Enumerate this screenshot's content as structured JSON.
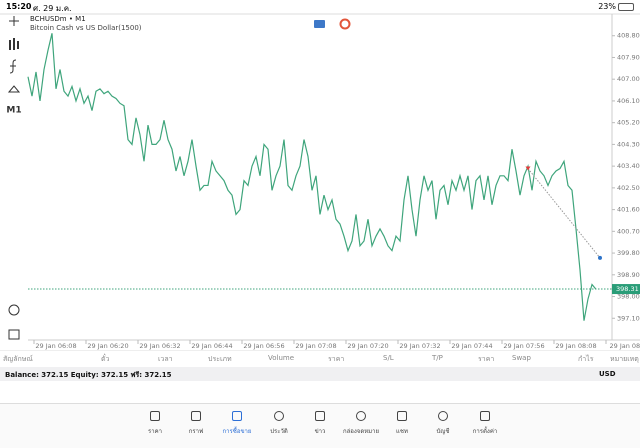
{
  "status_bar": {
    "time": "15:20",
    "date": "ศ. 29 ม.ค.",
    "battery": "23%"
  },
  "chart_data": {
    "type": "line",
    "title": "BCHUSDm • M1",
    "subtitle": "Bitcoin Cash vs US Dollar(1500)",
    "timeframe": "M1",
    "color": "#3fa57c",
    "values": [
      407.1,
      406.3,
      407.3,
      406.1,
      407.4,
      408.2,
      408.9,
      406.6,
      407.4,
      406.5,
      406.3,
      406.7,
      406.1,
      406.6,
      406.0,
      406.3,
      405.7,
      406.5,
      406.6,
      406.4,
      406.5,
      406.3,
      406.2,
      406.0,
      405.9,
      404.5,
      404.3,
      405.4,
      404.7,
      403.6,
      405.1,
      404.3,
      404.3,
      404.5,
      405.3,
      404.5,
      404.1,
      403.2,
      403.8,
      403.0,
      403.6,
      404.5,
      403.4,
      402.4,
      402.6,
      402.6,
      403.6,
      403.2,
      403.0,
      402.8,
      402.4,
      402.2,
      401.4,
      401.6,
      402.8,
      402.6,
      403.4,
      403.8,
      403.0,
      404.3,
      404.1,
      402.4,
      403.0,
      403.4,
      404.5,
      402.6,
      402.4,
      403.0,
      403.4,
      404.5,
      403.8,
      402.4,
      403.0,
      401.4,
      402.2,
      401.6,
      402.0,
      401.2,
      401.0,
      400.5,
      399.9,
      400.3,
      401.4,
      400.1,
      400.3,
      401.2,
      400.1,
      400.5,
      400.8,
      400.5,
      400.1,
      399.9,
      400.5,
      400.3,
      402.0,
      403.0,
      401.6,
      400.5,
      402.0,
      403.0,
      402.4,
      402.8,
      401.2,
      402.4,
      402.6,
      401.8,
      402.8,
      402.4,
      403.0,
      402.4,
      403.0,
      401.6,
      402.8,
      403.0,
      402.0,
      403.0,
      401.8,
      402.6,
      403.0,
      403.0,
      402.8,
      404.1,
      403.2,
      402.2,
      403.0,
      403.4,
      402.4,
      403.6,
      403.2,
      403.0,
      402.6,
      403.0,
      403.2,
      403.3,
      403.6,
      402.6,
      402.4,
      400.8,
      399.1,
      397.0,
      397.9,
      398.5,
      398.3
    ],
    "xlim": [
      -7,
      146
    ],
    "xticks": [
      {
        "value": 7,
        "label": "29 Jan 06:08"
      },
      {
        "value": 20,
        "label": "29 Jan 06:20"
      },
      {
        "value": 33,
        "label": "29 Jan 06:32"
      },
      {
        "value": 46,
        "label": "29 Jan 06:44"
      },
      {
        "value": 59,
        "label": "29 Jan 06:56"
      },
      {
        "value": 72,
        "label": "29 Jan 07:08"
      },
      {
        "value": 85,
        "label": "29 Jan 07:20"
      },
      {
        "value": 98,
        "label": "29 Jan 07:32"
      },
      {
        "value": 111,
        "label": "29 Jan 07:44"
      },
      {
        "value": 124,
        "label": "29 Jan 07:56"
      },
      {
        "value": 137,
        "label": "29 Jan 08:08"
      },
      {
        "value": 150,
        "label": "29 Jan 08:2"
      }
    ],
    "ylim": [
      396.2,
      409.7
    ],
    "yticks": [
      {
        "value": 408.8,
        "label": "408.80"
      },
      {
        "value": 407.9,
        "label": "407.90"
      },
      {
        "value": 407,
        "label": "407.00"
      },
      {
        "value": 406.1,
        "label": "406.10"
      },
      {
        "value": 405.2,
        "label": "405.20"
      },
      {
        "value": 404.3,
        "label": "404.30"
      },
      {
        "value": 403.4,
        "label": "403.40"
      },
      {
        "value": 402.5,
        "label": "402.50"
      },
      {
        "value": 401.6,
        "label": "401.60"
      },
      {
        "value": 400.7,
        "label": "400.70"
      },
      {
        "value": 399.8,
        "label": "399.80"
      },
      {
        "value": 398.9,
        "label": "398.90"
      },
      {
        "value": 398,
        "label": "398.00"
      },
      {
        "value": 397.1,
        "label": "397.10"
      }
    ],
    "current_price": {
      "value": 398.31,
      "label": "398.31"
    },
    "trade": {
      "open_x": 125,
      "open": 403.3,
      "close_x": 143,
      "close": 399.6
    }
  },
  "table_header": [
    "สัญลักษณ์",
    "ตั๋ว",
    "เวลา",
    "ประเภท",
    "Volume",
    "ราคา",
    "S/L",
    "T/P",
    "ราคา",
    "Swap",
    "กำไร",
    "หมายเหตุ"
  ],
  "balance_bar": {
    "text": "Balance: 372.15 Equity: 372.15 ฟรี: 372.15",
    "currency": "USD"
  },
  "tabs": [
    "ราคา",
    "กราฟ",
    "การซื้อขาย",
    "ประวัติ",
    "ข่าว",
    "กล่องจดหมาย",
    "แชท",
    "บัญชี",
    "การตั้งค่า"
  ]
}
